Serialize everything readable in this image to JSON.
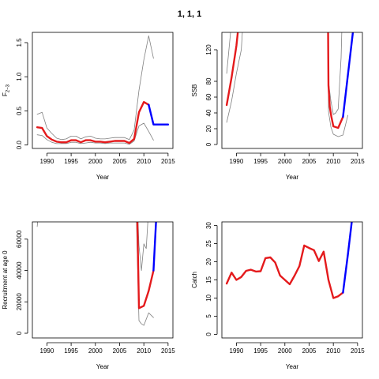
{
  "title": "1, 1, 1",
  "colors": {
    "fit": "#e41a1c",
    "projection": "#0000ff",
    "ci": "#808080",
    "axis": "#000000"
  },
  "chart_data": [
    {
      "type": "line",
      "xlabel": "Year",
      "ylabel": "F2−3",
      "ylabel_main": "F",
      "ylabel_sub": "2−3",
      "xlim": [
        1987,
        2016
      ],
      "ylim": [
        -0.05,
        1.65
      ],
      "xticks": [
        1990,
        1995,
        2000,
        2005,
        2010,
        2015
      ],
      "yticks": [
        0,
        0.5,
        1,
        1.5
      ],
      "ytick_labels": [
        "0.0",
        "0.5",
        "1.0",
        "1.5"
      ],
      "series": [
        {
          "role": "ci_upper",
          "x": [
            1988,
            1989,
            1990,
            1991,
            1992,
            1993,
            1994,
            1995,
            1996,
            1997,
            1998,
            1999,
            2000,
            2001,
            2002,
            2003,
            2004,
            2005,
            2006,
            2007,
            2008,
            2009,
            2010,
            2011,
            2012
          ],
          "values": [
            0.45,
            0.48,
            0.25,
            0.17,
            0.1,
            0.08,
            0.09,
            0.13,
            0.13,
            0.09,
            0.12,
            0.13,
            0.1,
            0.09,
            0.09,
            0.1,
            0.11,
            0.11,
            0.11,
            0.08,
            0.22,
            0.8,
            1.25,
            1.6,
            1.27
          ]
        },
        {
          "role": "ci_lower",
          "x": [
            1988,
            1989,
            1990,
            1991,
            1992,
            1993,
            1994,
            1995,
            1996,
            1997,
            1998,
            1999,
            2000,
            2001,
            2002,
            2003,
            2004,
            2005,
            2006,
            2007,
            2008,
            2009,
            2010,
            2011,
            2012
          ],
          "values": [
            0.15,
            0.14,
            0.08,
            0.04,
            0.02,
            0.02,
            0.02,
            0.04,
            0.04,
            0.02,
            0.03,
            0.04,
            0.03,
            0.03,
            0.02,
            0.03,
            0.03,
            0.03,
            0.03,
            0.01,
            0.06,
            0.28,
            0.32,
            0.2,
            0.07
          ]
        },
        {
          "role": "fit",
          "x": [
            1988,
            1989,
            1990,
            1991,
            1992,
            1993,
            1994,
            1995,
            1996,
            1997,
            1998,
            1999,
            2000,
            2001,
            2002,
            2003,
            2004,
            2005,
            2006,
            2007,
            2008,
            2009,
            2010,
            2011
          ],
          "values": [
            0.26,
            0.25,
            0.13,
            0.08,
            0.05,
            0.04,
            0.04,
            0.07,
            0.07,
            0.04,
            0.07,
            0.07,
            0.05,
            0.05,
            0.04,
            0.05,
            0.06,
            0.06,
            0.06,
            0.03,
            0.09,
            0.48,
            0.63,
            0.59
          ]
        },
        {
          "role": "projection",
          "x": [
            2011,
            2012,
            2013,
            2014,
            2015
          ],
          "values": [
            0.59,
            0.3,
            0.3,
            0.3,
            0.3
          ]
        }
      ]
    },
    {
      "type": "line",
      "xlabel": "Year",
      "ylabel": "SSB",
      "xlim": [
        1987,
        2016
      ],
      "ylim": [
        -5,
        142
      ],
      "xticks": [
        1990,
        1995,
        2000,
        2005,
        2010,
        2015
      ],
      "yticks": [
        0,
        20,
        40,
        60,
        80,
        120
      ],
      "ytick_labels": [
        "0",
        "20",
        "40",
        "60",
        "80",
        "120"
      ],
      "series": [
        {
          "role": "ci_upper",
          "x": [
            1988,
            1988.8,
            1989.6
          ],
          "values": [
            90,
            142,
            200
          ]
        },
        {
          "role": "ci_upper",
          "x": [
            2008.85,
            2009,
            2009.5,
            2010,
            2010.5,
            2011,
            2011.6,
            2012
          ],
          "values": [
            200,
            80,
            55,
            38,
            40,
            45,
            110,
            200
          ]
        },
        {
          "role": "ci_lower",
          "x": [
            1988,
            1989,
            1990,
            1991,
            1991.8
          ],
          "values": [
            28,
            55,
            90,
            120,
            200
          ]
        },
        {
          "role": "ci_lower",
          "x": [
            2008.9,
            2009,
            2009.5,
            2010,
            2011,
            2012,
            2013
          ],
          "values": [
            200,
            42,
            22,
            13,
            10,
            12,
            37
          ]
        },
        {
          "role": "fit",
          "x": [
            1988,
            1989,
            1990,
            1990.6
          ],
          "values": [
            50,
            85,
            125,
            160
          ]
        },
        {
          "role": "fit",
          "x": [
            2008.9,
            2009,
            2009.25,
            2009.6,
            2010,
            2011,
            2012
          ],
          "values": [
            160,
            75,
            48,
            35,
            23,
            21,
            35
          ]
        },
        {
          "role": "projection",
          "x": [
            2012,
            2013,
            2014,
            2014.3
          ],
          "values": [
            35,
            88,
            140,
            160
          ]
        }
      ]
    },
    {
      "type": "line",
      "xlabel": "Year",
      "ylabel": "Recruitment at age 0",
      "xlim": [
        1987,
        2016
      ],
      "ylim": [
        -3000,
        71000
      ],
      "xticks": [
        1990,
        1995,
        2000,
        2005,
        2010,
        2015
      ],
      "yticks": [
        0,
        20000,
        40000,
        60000
      ],
      "ytick_labels": [
        "0",
        "20000",
        "40000",
        "60000"
      ],
      "series": [
        {
          "role": "ci_upper",
          "x": [
            1988,
            1988.35
          ],
          "values": [
            68000,
            80000
          ]
        },
        {
          "role": "ci_upper",
          "x": [
            2008.7,
            2009,
            2009.5,
            2010,
            2010.5,
            2011
          ],
          "values": [
            80000,
            56000,
            40000,
            57000,
            54000,
            80000
          ]
        },
        {
          "role": "ci_lower",
          "x": [
            2008.4,
            2009,
            2009.5,
            2010,
            2011,
            2012
          ],
          "values": [
            80000,
            8000,
            6000,
            5000,
            13000,
            10000
          ]
        },
        {
          "role": "fit",
          "x": [
            2008.6,
            2009,
            2010,
            2011,
            2012
          ],
          "values": [
            80000,
            16000,
            17500,
            27000,
            40000
          ]
        },
        {
          "role": "projection",
          "x": [
            2012,
            2012.5,
            2012.7
          ],
          "values": [
            40000,
            70000,
            80000
          ]
        }
      ]
    },
    {
      "type": "line",
      "xlabel": "Year",
      "ylabel": "Catch",
      "xlim": [
        1987,
        2016
      ],
      "ylim": [
        -1,
        31
      ],
      "xticks": [
        1990,
        1995,
        2000,
        2005,
        2010,
        2015
      ],
      "yticks": [
        0,
        5,
        10,
        15,
        20,
        25,
        30
      ],
      "ytick_labels": [
        "0",
        "5",
        "10",
        "15",
        "20",
        "25",
        "30"
      ],
      "series": [
        {
          "role": "fit",
          "x": [
            1988,
            1989,
            1990,
            1991,
            1992,
            1993,
            1994,
            1995,
            1996,
            1997,
            1998,
            1999,
            2000,
            2001,
            2002,
            2003,
            2004,
            2005,
            2006,
            2007,
            2008,
            2009,
            2010,
            2011,
            2012
          ],
          "values": [
            14,
            17,
            15,
            15.8,
            17.5,
            17.8,
            17.3,
            17.4,
            21,
            21.2,
            19.8,
            16.2,
            15,
            13.8,
            16.2,
            18.8,
            24.5,
            23.8,
            23.2,
            20.2,
            22.8,
            15,
            10,
            10.5,
            11.5
          ]
        },
        {
          "role": "projection",
          "x": [
            2012,
            2013,
            2013.8
          ],
          "values": [
            11.5,
            22,
            31
          ]
        }
      ]
    }
  ]
}
